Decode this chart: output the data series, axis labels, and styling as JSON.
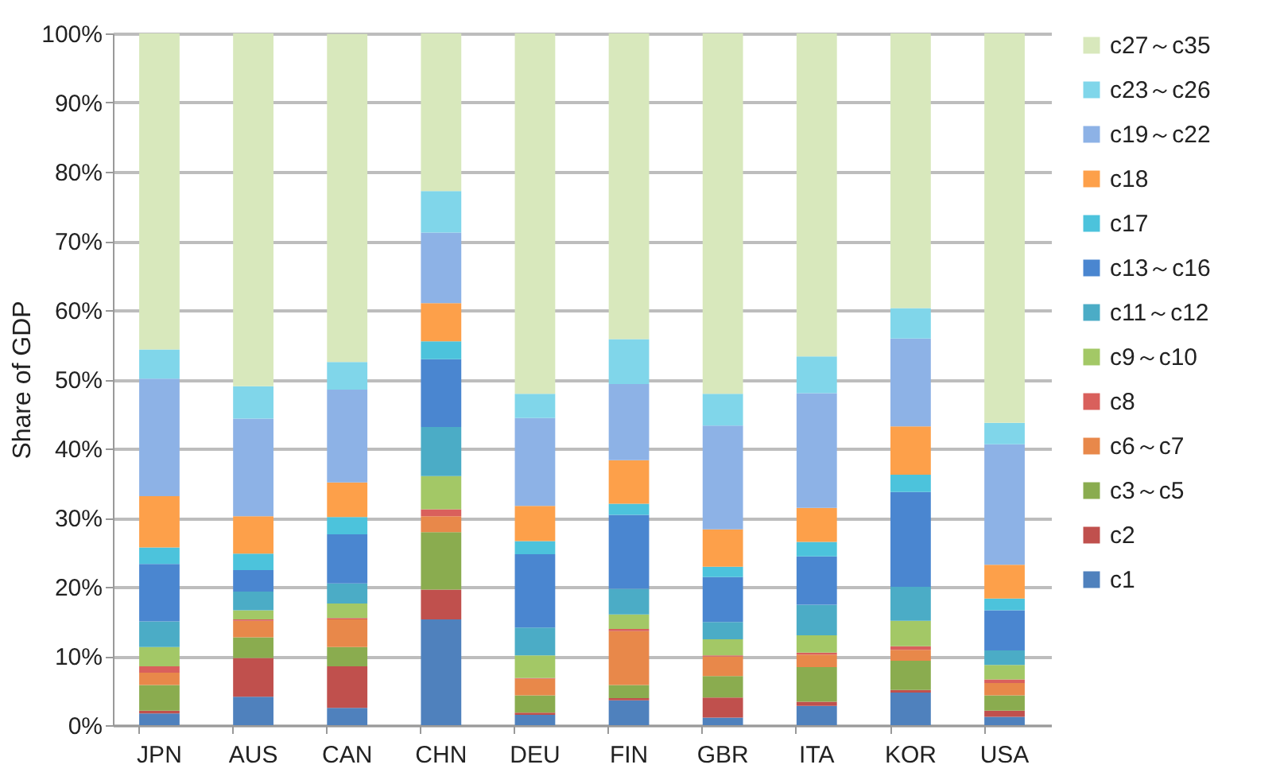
{
  "chart_data": {
    "type": "bar",
    "stacked": true,
    "ylabel": "Share of GDP",
    "categories": [
      "JPN",
      "AUS",
      "CAN",
      "CHN",
      "DEU",
      "FIN",
      "GBR",
      "ITA",
      "KOR",
      "USA"
    ],
    "ylim": [
      0,
      100
    ],
    "yticks": [
      {
        "value": 0,
        "label": "0%"
      },
      {
        "value": 10,
        "label": "10%"
      },
      {
        "value": 20,
        "label": "20%"
      },
      {
        "value": 30,
        "label": "30%"
      },
      {
        "value": 40,
        "label": "40%"
      },
      {
        "value": 50,
        "label": "50%"
      },
      {
        "value": 60,
        "label": "60%"
      },
      {
        "value": 70,
        "label": "70%"
      },
      {
        "value": 80,
        "label": "80%"
      },
      {
        "value": 90,
        "label": "90%"
      },
      {
        "value": 100,
        "label": "100%"
      }
    ],
    "grid": "y",
    "legend": "right",
    "series": [
      {
        "name": "c1",
        "color": "#4f81bd",
        "values": [
          1.7,
          4.1,
          2.5,
          15.3,
          1.5,
          3.6,
          1.1,
          2.8,
          4.7,
          1.2
        ]
      },
      {
        "name": "c2",
        "color": "#c0504d",
        "values": [
          0.4,
          5.6,
          6.0,
          4.3,
          0.3,
          0.3,
          2.9,
          0.6,
          0.4,
          0.9
        ]
      },
      {
        "name": "c3～c5",
        "color": "#8aac4f",
        "values": [
          3.7,
          3.0,
          2.8,
          8.3,
          2.5,
          1.9,
          3.1,
          5.0,
          4.2,
          2.2
        ]
      },
      {
        "name": "c6～c7",
        "color": "#e8884a",
        "values": [
          1.8,
          2.4,
          4.0,
          2.3,
          2.4,
          7.8,
          2.8,
          1.8,
          1.6,
          1.8
        ]
      },
      {
        "name": "c8",
        "color": "#d9605c",
        "values": [
          0.9,
          0.2,
          0.2,
          1.0,
          0.1,
          0.3,
          0.2,
          0.3,
          0.5,
          0.5
        ]
      },
      {
        "name": "c9～c10",
        "color": "#a3c866",
        "values": [
          2.8,
          1.3,
          2.1,
          4.8,
          3.3,
          2.1,
          2.3,
          2.5,
          3.7,
          2.1
        ]
      },
      {
        "name": "c11～c12",
        "color": "#4bacc6",
        "values": [
          3.7,
          2.7,
          2.9,
          7.1,
          4.0,
          3.7,
          2.5,
          4.4,
          4.9,
          2.1
        ]
      },
      {
        "name": "c13～c16",
        "color": "#4a86d0",
        "values": [
          8.3,
          3.1,
          7.1,
          9.8,
          10.6,
          10.7,
          6.5,
          7.0,
          13.7,
          5.8
        ]
      },
      {
        "name": "c17",
        "color": "#4cc3dc",
        "values": [
          2.4,
          2.4,
          2.5,
          2.6,
          1.9,
          1.6,
          1.5,
          2.1,
          2.5,
          1.7
        ]
      },
      {
        "name": "c18",
        "color": "#fda04a",
        "values": [
          7.4,
          5.4,
          5.0,
          5.5,
          5.1,
          6.3,
          5.4,
          4.9,
          7.0,
          4.9
        ]
      },
      {
        "name": "c19～c22",
        "color": "#8db2e6",
        "values": [
          17.0,
          14.1,
          13.4,
          10.2,
          12.7,
          11.0,
          15.0,
          16.6,
          12.7,
          17.4
        ]
      },
      {
        "name": "c23～c26",
        "color": "#80d6ea",
        "values": [
          4.2,
          4.7,
          4.0,
          6.0,
          3.5,
          6.5,
          4.6,
          5.3,
          4.4,
          3.1
        ]
      },
      {
        "name": "c27～c35",
        "color": "#d8e8bc",
        "values": [
          45.7,
          51.0,
          47.4,
          22.8,
          52.1,
          44.2,
          52.1,
          46.7,
          39.7,
          56.3
        ]
      }
    ]
  }
}
